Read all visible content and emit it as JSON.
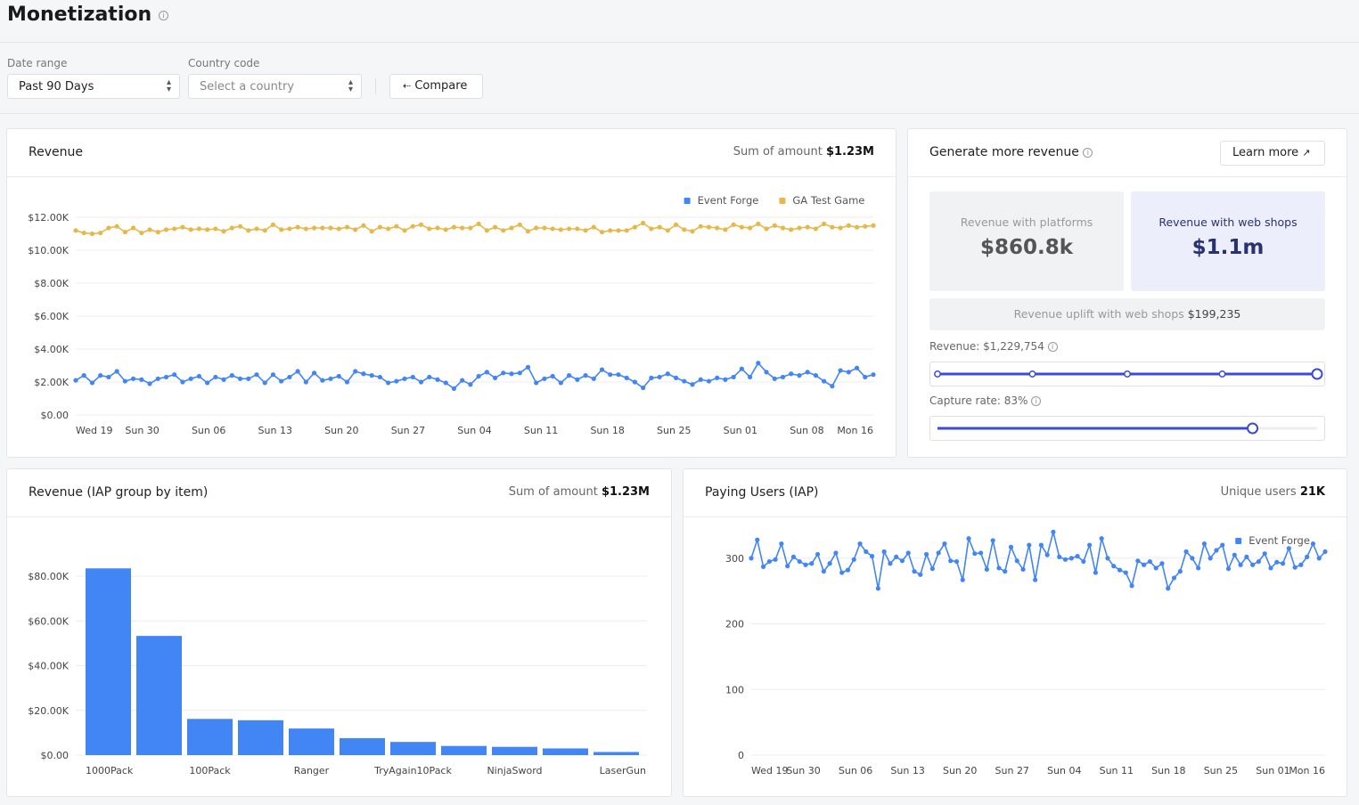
{
  "page": {
    "title": "Monetization"
  },
  "filters": {
    "date_range_label": "Date range",
    "date_range_value": "Past 90 Days",
    "country_label": "Country code",
    "country_placeholder": "Select a country",
    "compare_label": "Compare"
  },
  "revenue_card": {
    "title": "Revenue",
    "sum_label": "Sum of amount",
    "sum_value": "$1.23M"
  },
  "generate_card": {
    "title": "Generate more revenue",
    "learn_more": "Learn more",
    "platforms_label": "Revenue with platforms",
    "platforms_value": "$860.8k",
    "webshops_label": "Revenue with web shops",
    "webshops_value": "$1.1m",
    "uplift_label": "Revenue uplift with web shops",
    "uplift_value": "$199,235",
    "revenue_slider_label": "Revenue: $1,229,754",
    "capture_slider_label": "Capture rate: 83%",
    "revenue_slider_level": 1.0,
    "capture_slider_level": 0.83
  },
  "iap_card": {
    "title": "Revenue (IAP group by item)",
    "sum_label": "Sum of amount",
    "sum_value": "$1.23M"
  },
  "paying_card": {
    "title": "Paying Users (IAP)",
    "sum_label": "Unique users",
    "sum_value": "21K"
  },
  "colors": {
    "blue": "#4285f4",
    "gold": "#e6b84a",
    "accent": "#3b4bd6",
    "webshop_bg": "#eceffb"
  },
  "chart_data": [
    {
      "type": "line",
      "id": "revenue",
      "x_ticks": [
        "Wed 19",
        "Sun 30",
        "Sun 06",
        "Sun 13",
        "Sun 20",
        "Sun 27",
        "Sun 04",
        "Sun 11",
        "Sun 18",
        "Sun 25",
        "Sun 01",
        "Sun 08",
        "Mon 16"
      ],
      "y_ticks": [
        "$0.00",
        "$2.00K",
        "$4.00K",
        "$6.00K",
        "$8.00K",
        "$10.00K",
        "$12.00K"
      ],
      "ylim": [
        0,
        12000
      ],
      "legend_position": "top-right",
      "series": [
        {
          "name": "Event Forge",
          "color": "#4285f4",
          "values": [
            2100,
            2400,
            1950,
            2400,
            2300,
            2650,
            2050,
            2200,
            2150,
            1900,
            2200,
            2300,
            2450,
            2000,
            2200,
            2350,
            1950,
            2300,
            2150,
            2400,
            2200,
            2200,
            2450,
            1950,
            2450,
            2050,
            2300,
            2650,
            2000,
            2550,
            2100,
            2200,
            2350,
            2000,
            2650,
            2500,
            2400,
            2300,
            1950,
            2050,
            2200,
            2300,
            2000,
            2300,
            2150,
            1950,
            1600,
            2100,
            1850,
            2350,
            2600,
            2250,
            2550,
            2500,
            2550,
            2900,
            1950,
            2200,
            2350,
            1950,
            2400,
            2150,
            2400,
            2200,
            2750,
            2450,
            2450,
            2250,
            2000,
            1650,
            2250,
            2300,
            2500,
            2250,
            2050,
            1850,
            2150,
            2050,
            2250,
            2150,
            2300,
            2800,
            2300,
            3150,
            2600,
            2200,
            2300,
            2500,
            2400,
            2600,
            2400,
            2050,
            1750,
            2700,
            2600,
            2850,
            2300,
            2450
          ]
        },
        {
          "name": "GA Test Game",
          "color": "#e6b84a",
          "values": [
            11200,
            11050,
            11000,
            11050,
            11350,
            11450,
            11100,
            11350,
            11050,
            11250,
            11100,
            11250,
            11300,
            11400,
            11250,
            11300,
            11250,
            11300,
            11150,
            11350,
            11450,
            11200,
            11300,
            11200,
            11550,
            11250,
            11300,
            11400,
            11300,
            11350,
            11350,
            11350,
            11300,
            11400,
            11250,
            11500,
            11150,
            11400,
            11300,
            11450,
            11200,
            11450,
            11550,
            11300,
            11350,
            11250,
            11400,
            11350,
            11350,
            11600,
            11200,
            11400,
            11200,
            11350,
            11550,
            11150,
            11350,
            11350,
            11300,
            11250,
            11300,
            11300,
            11200,
            11400,
            11100,
            11200,
            11200,
            11200,
            11400,
            11650,
            11300,
            11400,
            11200,
            11550,
            11250,
            11150,
            11450,
            11400,
            11350,
            11250,
            11550,
            11400,
            11350,
            11600,
            11300,
            11500,
            11350,
            11250,
            11350,
            11400,
            11300,
            11600,
            11400,
            11350,
            11500,
            11400,
            11450,
            11500
          ]
        }
      ]
    },
    {
      "type": "bar",
      "id": "iap",
      "categories": [
        "1000Pack",
        "",
        "100Pack",
        "",
        "Ranger",
        "",
        "TryAgain10Pack",
        "",
        "NinjaSword",
        "",
        "LaserGun"
      ],
      "values": [
        83500,
        53300,
        16200,
        15600,
        11900,
        7600,
        5900,
        4100,
        3700,
        3000,
        1400
      ],
      "y_ticks": [
        "$0.00",
        "$20.00K",
        "$40.00K",
        "$60.00K",
        "$80.00K"
      ],
      "ylim": [
        0,
        90000
      ]
    },
    {
      "type": "line",
      "id": "paying",
      "x_ticks": [
        "Wed 19",
        "Sun 30",
        "Sun 06",
        "Sun 13",
        "Sun 20",
        "Sun 27",
        "Sun 04",
        "Sun 11",
        "Sun 18",
        "Sun 25",
        "Sun 01",
        "Mon 16"
      ],
      "y_ticks": [
        "0",
        "100",
        "200",
        "300"
      ],
      "ylim": [
        0,
        350
      ],
      "legend_position": "top-right",
      "series": [
        {
          "name": "Event Forge",
          "color": "#4285f4",
          "values": [
            300,
            328,
            287,
            295,
            298,
            322,
            288,
            302,
            295,
            290,
            292,
            306,
            280,
            292,
            308,
            278,
            282,
            298,
            322,
            310,
            303,
            254,
            310,
            292,
            302,
            296,
            308,
            280,
            275,
            306,
            284,
            308,
            322,
            296,
            295,
            267,
            330,
            307,
            308,
            283,
            327,
            285,
            280,
            317,
            296,
            283,
            320,
            267,
            320,
            305,
            340,
            302,
            298,
            300,
            303,
            295,
            320,
            278,
            330,
            300,
            288,
            282,
            278,
            258,
            296,
            290,
            295,
            285,
            292,
            254,
            270,
            280,
            310,
            300,
            285,
            322,
            300,
            312,
            320,
            284,
            305,
            290,
            302,
            290,
            295,
            307,
            285,
            294,
            292,
            315,
            286,
            290,
            302,
            322,
            300,
            310
          ]
        }
      ]
    }
  ]
}
